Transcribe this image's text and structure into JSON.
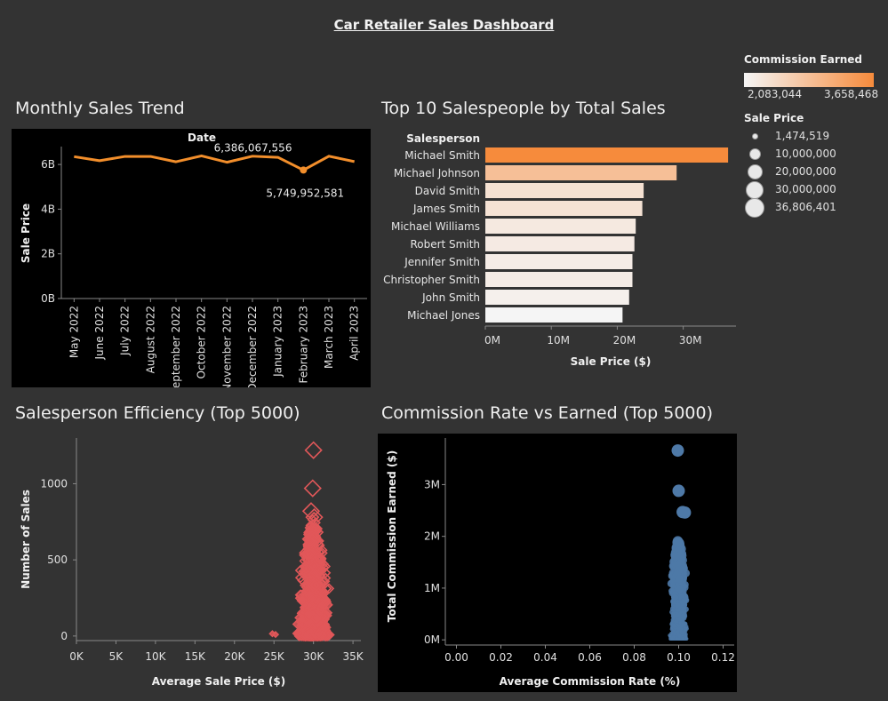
{
  "dashboard": {
    "title": "Car Retailer Sales Dashboard"
  },
  "panels": {
    "monthly": {
      "title": "Monthly Sales Trend"
    },
    "top10": {
      "title": "Top 10 Salespeople by Total Sales"
    },
    "efficiency": {
      "title": "Salesperson Efficiency (Top 5000)"
    },
    "commission": {
      "title": "Commission Rate vs Earned (Top 5000)"
    }
  },
  "legend": {
    "color_title": "Commission Earned",
    "color_min": "2,083,044",
    "color_max": "3,658,468",
    "size_title": "Sale Price",
    "size_items": [
      "1,474,519",
      "10,000,000",
      "20,000,000",
      "30,000,000",
      "36,806,401"
    ],
    "gradient_colors": [
      "#f5f5f5",
      "#f68b3c"
    ]
  },
  "chart_data": [
    {
      "type": "line",
      "title": "Monthly Sales Trend",
      "xlabel": "Date",
      "ylabel": "Sale Price",
      "categories": [
        "May 2022",
        "June 2022",
        "July 2022",
        "August 2022",
        "September 2022",
        "October 2022",
        "November 2022",
        "December 2022",
        "January 2023",
        "February 2023",
        "March 2023",
        "April 2023"
      ],
      "values": [
        6350000000.0,
        6170000000.0,
        6360000000.0,
        6360000000.0,
        6120000000.0,
        6386067556.0,
        6100000000.0,
        6370000000.0,
        6320000000.0,
        5749952581.0,
        6370000000.0,
        6130000000.0
      ],
      "yticks": [
        0,
        2000000000.0,
        4000000000.0,
        6000000000.0
      ],
      "ytick_labels": [
        "0B",
        "2B",
        "4B",
        "6B"
      ],
      "ylim": [
        0,
        6800000000.0
      ],
      "annotations": [
        {
          "category": "October 2022",
          "text": "6,386,067,556"
        },
        {
          "category": "February 2023",
          "text": "5,749,952,581"
        }
      ],
      "color": "#f28e2b"
    },
    {
      "type": "bar",
      "title": "Top 10 Salespeople by Total Sales",
      "category_header": "Salesperson",
      "xlabel": "Sale Price ($)",
      "categories": [
        "Michael Smith",
        "Michael Johnson",
        "David Smith",
        "James Smith",
        "Michael Williams",
        "Robert Smith",
        "Jennifer Smith",
        "Christopher Smith",
        "John Smith",
        "Michael Jones"
      ],
      "values": [
        36800000.0,
        29000000.0,
        24000000.0,
        23800000.0,
        22800000.0,
        22600000.0,
        22300000.0,
        22300000.0,
        21800000.0,
        20800000.0
      ],
      "commission": [
        3658468,
        2880000,
        2380000,
        2360000,
        2260000,
        2240000,
        2210000,
        2210000,
        2160000,
        2083044
      ],
      "xticks": [
        0,
        10000000.0,
        20000000.0,
        30000000.0
      ],
      "xtick_labels": [
        "0M",
        "10M",
        "20M",
        "30M"
      ],
      "xlim": [
        0,
        38000000.0
      ]
    },
    {
      "type": "scatter",
      "title": "Salesperson Efficiency (Top 5000)",
      "xlabel": "Average Sale Price ($)",
      "ylabel": "Number of Sales",
      "xlim": [
        0,
        36000
      ],
      "ylim": [
        -30,
        1300
      ],
      "xticks": [
        0,
        5000,
        10000,
        15000,
        20000,
        25000,
        30000,
        35000
      ],
      "xtick_labels": [
        "0K",
        "5K",
        "10K",
        "15K",
        "20K",
        "25K",
        "30K",
        "35K"
      ],
      "yticks": [
        0,
        500,
        1000
      ],
      "ytick_labels": [
        "0",
        "500",
        "1000"
      ],
      "marker": "diamond",
      "color": "#e15759",
      "cluster": {
        "x_center": 30000,
        "x_spread": 2500,
        "y_max": 800,
        "count": 5000
      },
      "outliers": [
        [
          30000,
          1220
        ],
        [
          29900,
          970
        ],
        [
          29700,
          820
        ],
        [
          30100,
          780
        ],
        [
          25200,
          10
        ],
        [
          24800,
          15
        ]
      ]
    },
    {
      "type": "scatter",
      "title": "Commission Rate vs Earned (Top 5000)",
      "xlabel": "Average Commission Rate (%)",
      "ylabel": "Total Commission Earned ($)",
      "xlim": [
        -0.005,
        0.125
      ],
      "ylim": [
        -100000,
        3900000
      ],
      "xticks": [
        0,
        0.02,
        0.04,
        0.06,
        0.08,
        0.1,
        0.12
      ],
      "xtick_labels": [
        "0.00",
        "0.02",
        "0.04",
        "0.06",
        "0.08",
        "0.10",
        "0.12"
      ],
      "yticks": [
        0,
        1000000,
        2000000,
        3000000
      ],
      "ytick_labels": [
        "0M",
        "1M",
        "2M",
        "3M"
      ],
      "marker": "circle",
      "color": "#4e79a7",
      "cluster": {
        "x_center": 0.1,
        "x_spread": 0.005,
        "y_max": 2000000,
        "count": 5000
      },
      "outliers": [
        [
          0.0996,
          3658468
        ],
        [
          0.1,
          2880000
        ],
        [
          0.1018,
          2470000
        ],
        [
          0.1028,
          2460000
        ]
      ]
    }
  ]
}
